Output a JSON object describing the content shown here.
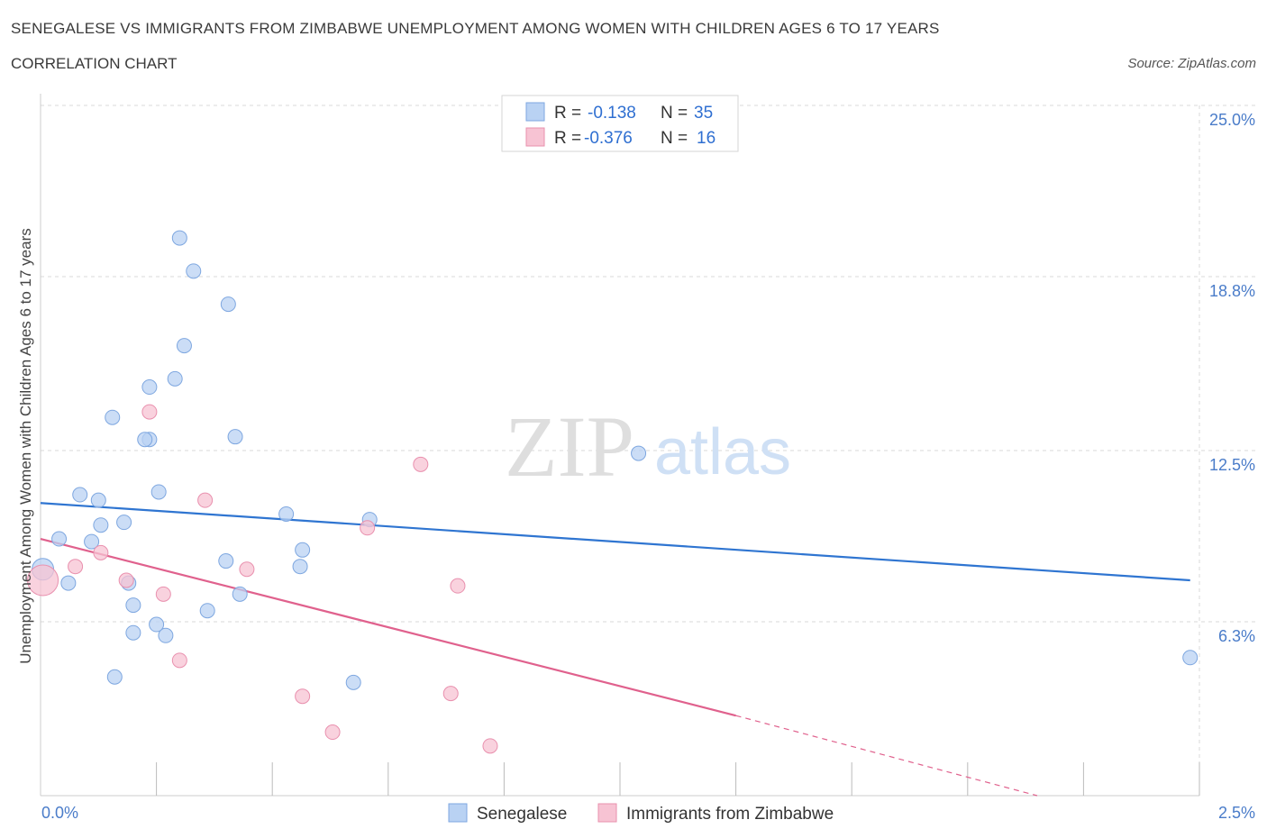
{
  "title": "SENEGALESE VS IMMIGRANTS FROM ZIMBABWE UNEMPLOYMENT AMONG WOMEN WITH CHILDREN AGES 6 TO 17 YEARS",
  "subtitle": "CORRELATION CHART",
  "source": "Source: ZipAtlas.com",
  "watermark": {
    "zip": "ZIP",
    "atlas": "atlas"
  },
  "legend": {
    "rows": [
      {
        "r_label": "R =",
        "r_value": "-0.138",
        "n_label": "N =",
        "n_value": "35"
      },
      {
        "r_label": "R =",
        "r_value": "-0.376",
        "n_label": "N =",
        "n_value": "16"
      }
    ]
  },
  "bottom_legend": [
    "Senegalese",
    "Immigrants from Zimbabwe"
  ],
  "colors": {
    "senegalese_fill": "#b9d2f3",
    "senegalese_stroke": "#7ea7e0",
    "senegalese_line": "#2f75d1",
    "zimbabwe_fill": "#f7c3d3",
    "zimbabwe_stroke": "#e990ae",
    "zimbabwe_line": "#e0618d",
    "tick_text": "#4a7cc9",
    "grid": "#d9d9d9"
  },
  "chart_data": {
    "type": "scatter",
    "title": "SENEGALESE VS IMMIGRANTS FROM ZIMBABWE UNEMPLOYMENT AMONG WOMEN WITH CHILDREN AGES 6 TO 17 YEARS",
    "xlabel": "",
    "ylabel": "Unemployment Among Women with Children Ages 6 to 17 years",
    "xlim": [
      0,
      2.5
    ],
    "ylim": [
      0,
      25.0
    ],
    "x_tick_labels": [
      "0.0%",
      "2.5%"
    ],
    "y_ticks": [
      6.3,
      12.5,
      18.8,
      25.0
    ],
    "y_tick_labels": [
      "6.3%",
      "12.5%",
      "18.8%",
      "25.0%"
    ],
    "grid": true,
    "legend_position": "top-center",
    "series": [
      {
        "name": "Senegalese",
        "x": [
          0.005,
          0.04,
          0.06,
          0.11,
          0.085,
          0.13,
          0.18,
          0.155,
          0.19,
          0.255,
          0.235,
          0.16,
          0.2,
          0.27,
          0.42,
          0.405,
          0.31,
          0.29,
          0.33,
          0.3,
          0.235,
          0.25,
          0.2,
          0.225,
          0.125,
          0.565,
          0.53,
          0.43,
          0.4,
          0.36,
          0.56,
          0.675,
          0.71,
          1.29,
          2.48
        ],
        "y": [
          8.2,
          9.3,
          7.7,
          9.2,
          10.9,
          9.8,
          9.9,
          13.7,
          7.7,
          11.0,
          12.9,
          4.3,
          6.9,
          5.8,
          13.0,
          17.8,
          16.3,
          15.1,
          19.0,
          20.2,
          14.8,
          6.2,
          5.9,
          12.9,
          10.7,
          8.9,
          10.2,
          7.3,
          8.5,
          6.7,
          8.3,
          4.1,
          10.0,
          12.4,
          5.0
        ],
        "trend": {
          "x": [
            0.0,
            2.48
          ],
          "y": [
            10.6,
            7.8
          ]
        }
      },
      {
        "name": "Immigrants from Zimbabwe",
        "x": [
          0.005,
          0.075,
          0.13,
          0.185,
          0.235,
          0.265,
          0.3,
          0.355,
          0.445,
          0.565,
          0.63,
          0.705,
          0.82,
          0.885,
          0.9,
          0.97
        ],
        "y": [
          7.8,
          8.3,
          8.8,
          7.8,
          13.9,
          7.3,
          4.9,
          10.7,
          8.2,
          3.6,
          2.3,
          9.7,
          12.0,
          3.7,
          7.6,
          1.8
        ],
        "trend": {
          "x": [
            0.0,
            1.5
          ],
          "y": [
            9.3,
            2.9
          ],
          "dashed_to": {
            "x": 2.15,
            "y": 0.0
          }
        }
      }
    ]
  }
}
